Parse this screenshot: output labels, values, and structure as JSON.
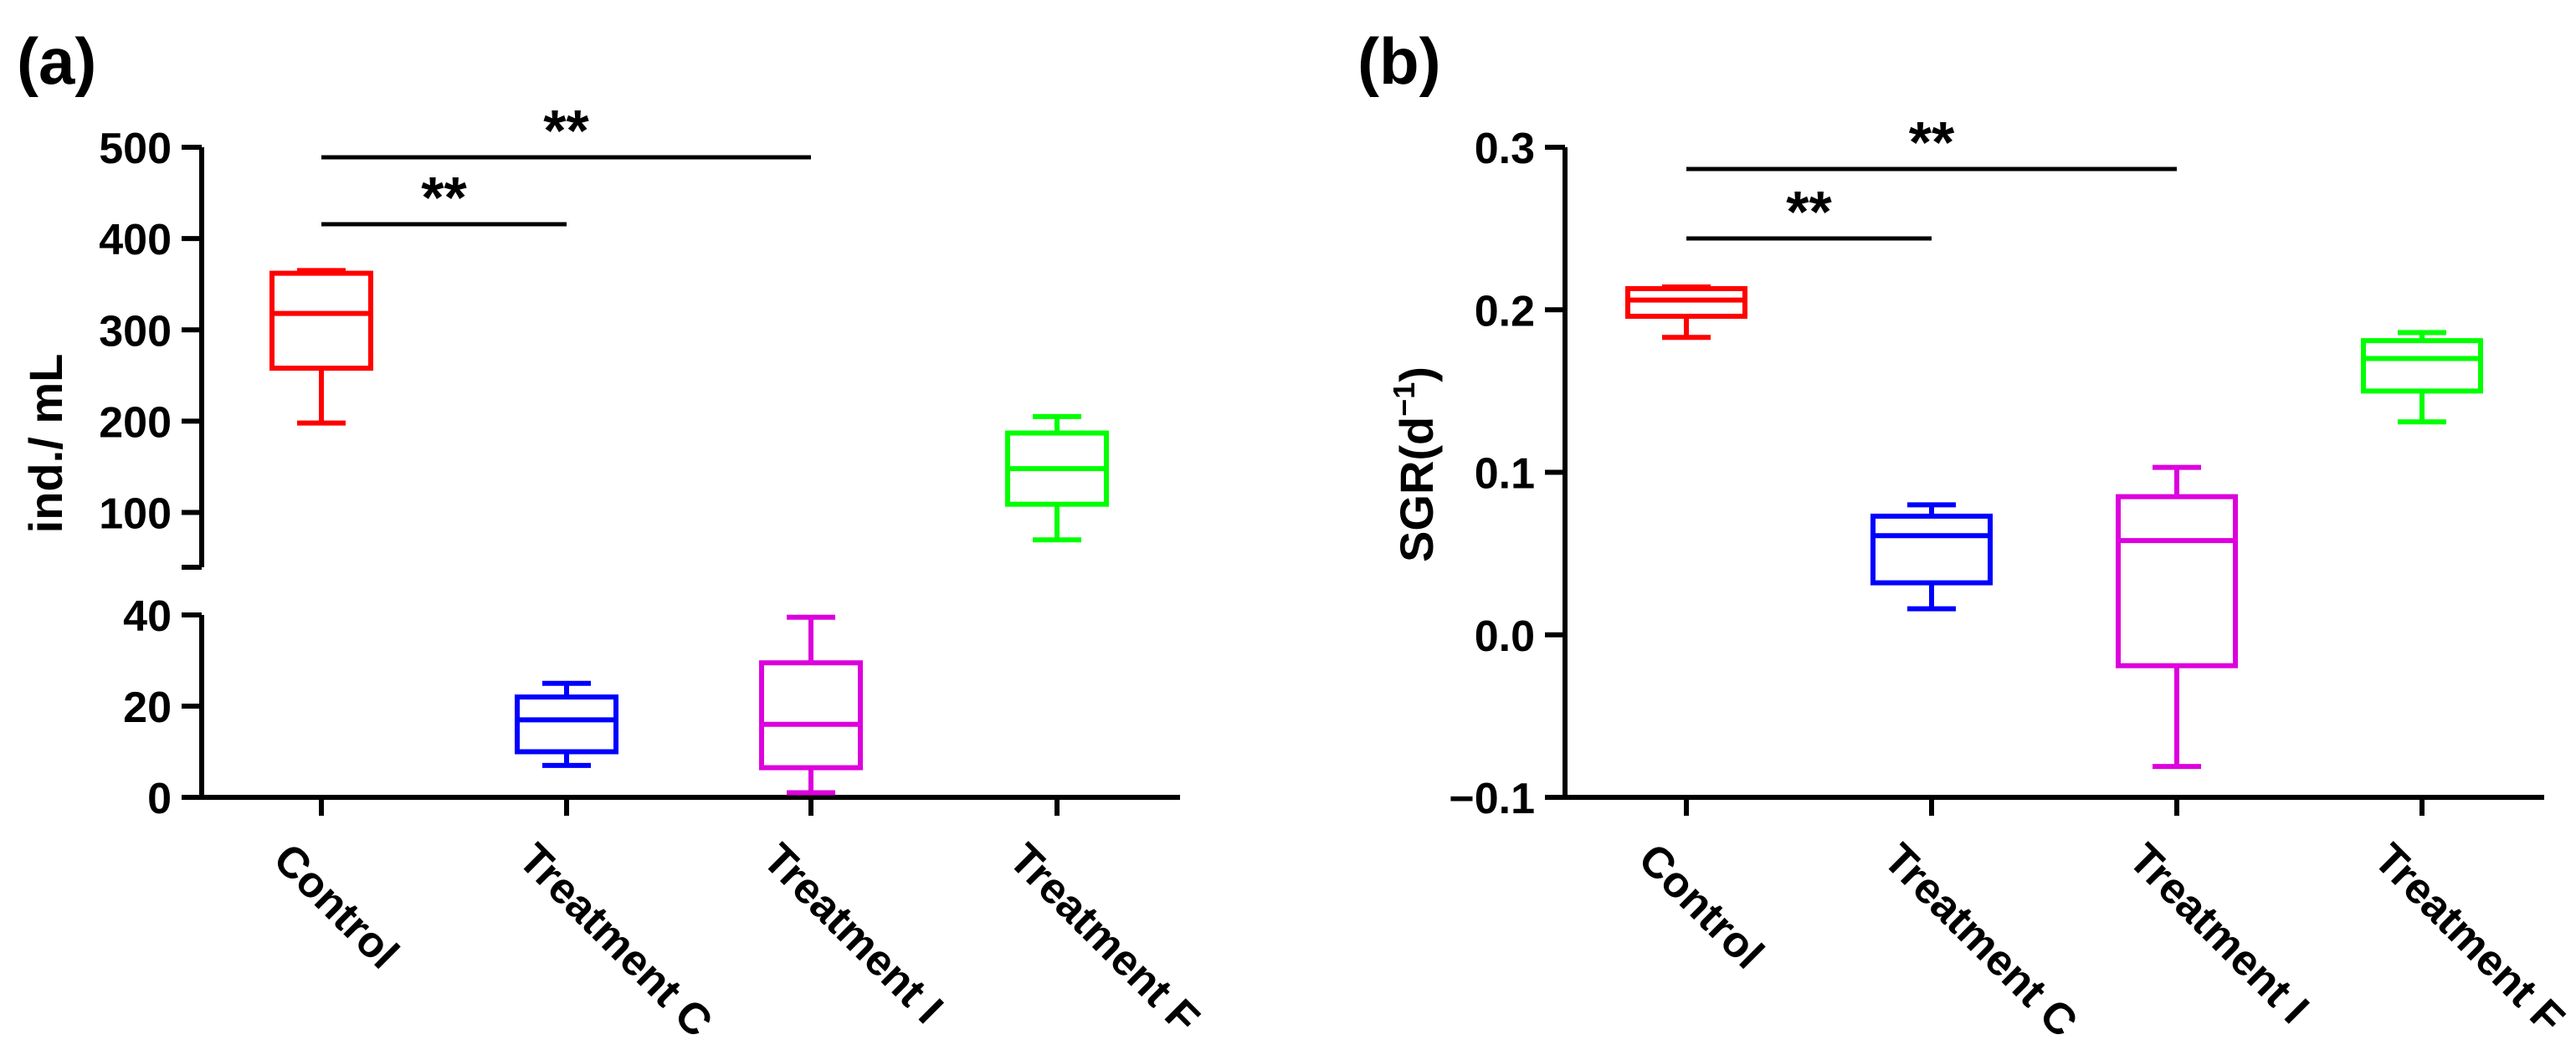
{
  "figure": {
    "panel_a_label": "(a)",
    "panel_b_label": "(b)",
    "significance_symbol": "**"
  },
  "colors": {
    "Control": "#ff0000",
    "Treatment C": "#0000ff",
    "Treatment I": "#dd00dd",
    "Treatment F": "#00ff00",
    "axis": "#000000"
  },
  "chart_data": [
    {
      "type": "boxplot",
      "panel": "(a)",
      "title": "",
      "xlabel": "",
      "ylabel": "ind./ mL",
      "categories": [
        "Control",
        "Treatment C",
        "Treatment I",
        "Treatment F"
      ],
      "y_axis_break": true,
      "lower_segment": {
        "ylim": [
          0,
          40
        ],
        "ticks": [
          0,
          20,
          40
        ]
      },
      "upper_segment": {
        "ylim": [
          40,
          500
        ],
        "ticks": [
          100,
          200,
          300,
          400,
          500
        ]
      },
      "boxes": [
        {
          "category": "Control",
          "min": 198,
          "q1": 258,
          "median": 318,
          "q3": 362,
          "max": 365
        },
        {
          "category": "Treatment C",
          "min": 7,
          "q1": 10,
          "median": 17,
          "q3": 22,
          "max": 25
        },
        {
          "category": "Treatment I",
          "min": 1,
          "q1": 6.5,
          "median": 16,
          "q3": 29.5,
          "max": 39.5
        },
        {
          "category": "Treatment F",
          "min": 70,
          "q1": 109,
          "median": 148,
          "q3": 187,
          "max": 205
        }
      ],
      "significance": [
        {
          "from": "Control",
          "to": "Treatment C",
          "label": "**"
        },
        {
          "from": "Control",
          "to": "Treatment I",
          "label": "**"
        }
      ]
    },
    {
      "type": "boxplot",
      "panel": "(b)",
      "title": "",
      "xlabel": "",
      "ylabel": "SGR(d",
      "ylabel_superscript": "−1",
      "ylabel_suffix": ")",
      "categories": [
        "Control",
        "Treatment C",
        "Treatment I",
        "Treatment F"
      ],
      "ylim": [
        -0.1,
        0.3
      ],
      "ticks": [
        -0.1,
        0.0,
        0.1,
        0.2,
        0.3
      ],
      "tick_labels": [
        "−0.1",
        "0.0",
        "0.1",
        "0.2",
        "0.3"
      ],
      "boxes": [
        {
          "category": "Control",
          "min": 0.183,
          "q1": 0.196,
          "median": 0.206,
          "q3": 0.213,
          "max": 0.214
        },
        {
          "category": "Treatment C",
          "min": 0.016,
          "q1": 0.032,
          "median": 0.061,
          "q3": 0.073,
          "max": 0.08
        },
        {
          "category": "Treatment I",
          "min": -0.081,
          "q1": -0.019,
          "median": 0.058,
          "q3": 0.085,
          "max": 0.103
        },
        {
          "category": "Treatment F",
          "min": 0.131,
          "q1": 0.15,
          "median": 0.17,
          "q3": 0.181,
          "max": 0.186
        }
      ],
      "significance": [
        {
          "from": "Control",
          "to": "Treatment C",
          "label": "**"
        },
        {
          "from": "Control",
          "to": "Treatment I",
          "label": "**"
        }
      ]
    }
  ]
}
